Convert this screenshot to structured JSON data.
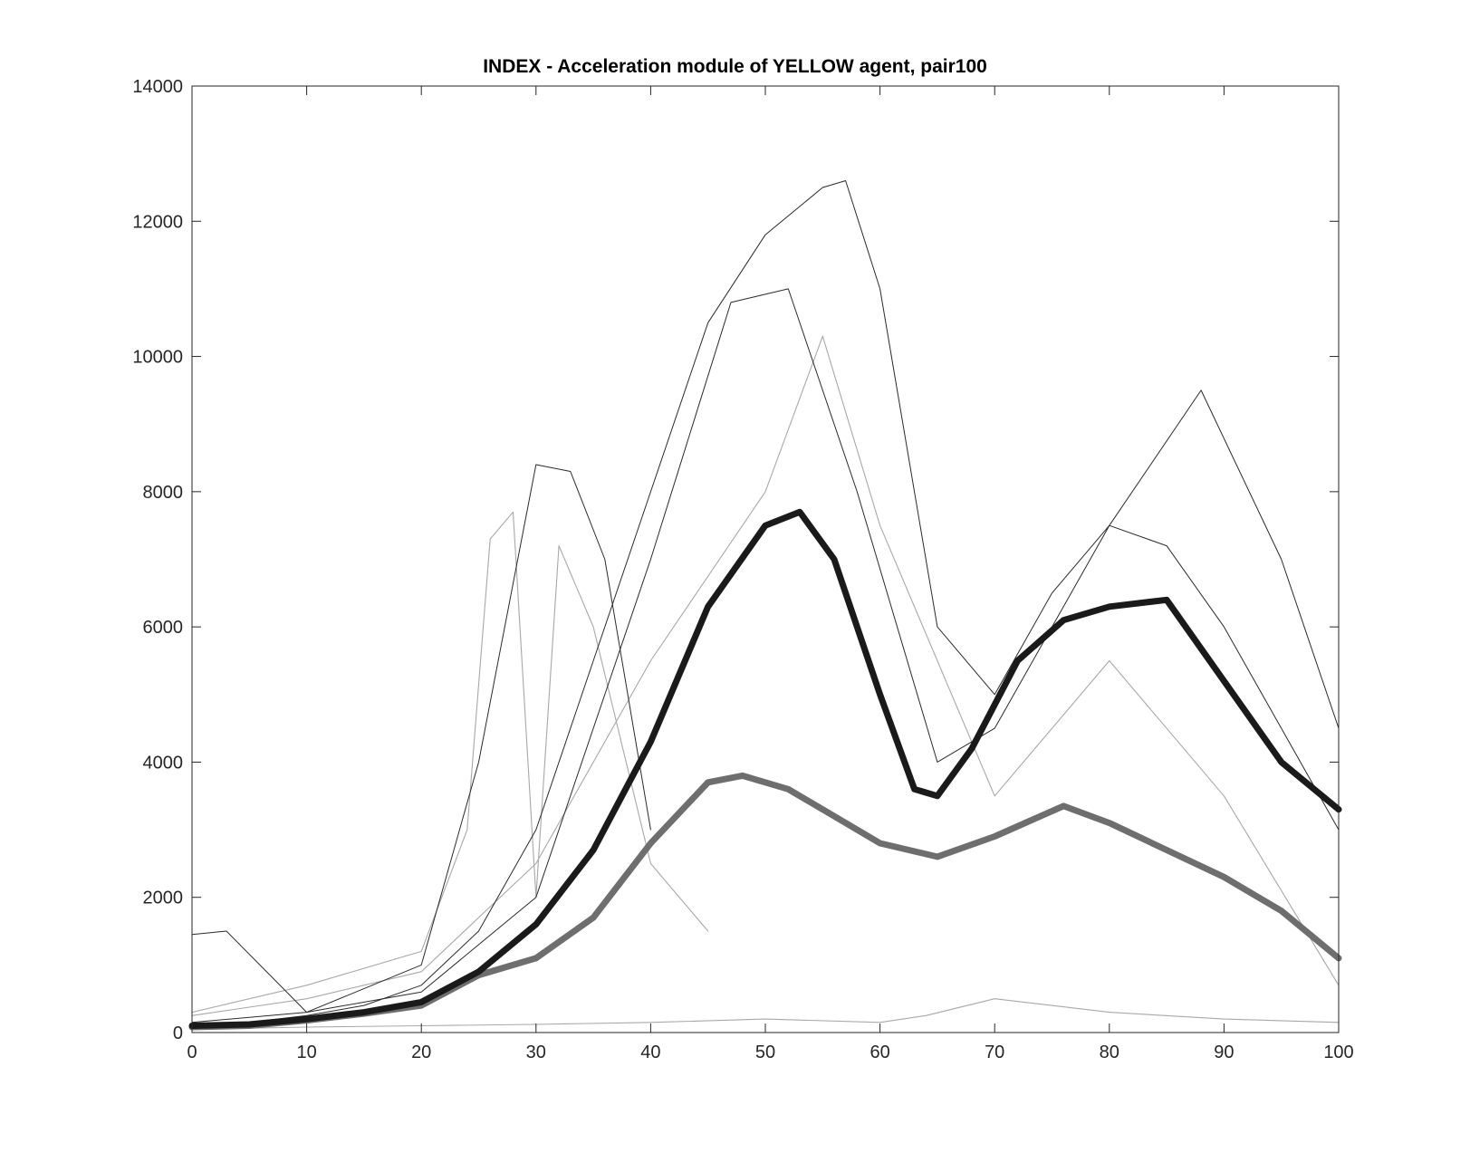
{
  "chart_data": {
    "type": "line",
    "title": "INDEX - Acceleration module of YELLOW agent, pair100",
    "xlabel": "",
    "ylabel": "",
    "xlim": [
      0,
      100
    ],
    "ylim": [
      0,
      14000
    ],
    "xticks": [
      0,
      10,
      20,
      30,
      40,
      50,
      60,
      70,
      80,
      90,
      100
    ],
    "yticks": [
      0,
      2000,
      4000,
      6000,
      8000,
      10000,
      12000,
      14000
    ],
    "grid": false,
    "legend": "none",
    "colors": {
      "mean_dark": "#1a1a1a",
      "mean_gray": "#6e6e6e",
      "trials_dark": "#2a2a2a",
      "trials_gray": "#a8a8a8",
      "axes": "#262626"
    },
    "series": [
      {
        "style": "thick-dark",
        "x": [
          0,
          5,
          10,
          15,
          20,
          25,
          30,
          35,
          40,
          45,
          50,
          53,
          56,
          60,
          63,
          65,
          68,
          72,
          76,
          80,
          85,
          90,
          95,
          100
        ],
        "values": [
          100,
          120,
          200,
          300,
          450,
          900,
          1600,
          2700,
          4300,
          6300,
          7500,
          7700,
          7000,
          5000,
          3600,
          3500,
          4200,
          5500,
          6100,
          6300,
          6400,
          5200,
          4000,
          3300
        ]
      },
      {
        "style": "thick-gray",
        "x": [
          0,
          5,
          10,
          15,
          20,
          25,
          30,
          35,
          40,
          45,
          48,
          52,
          56,
          60,
          65,
          70,
          76,
          80,
          85,
          90,
          95,
          100
        ],
        "values": [
          80,
          100,
          180,
          280,
          400,
          850,
          1100,
          1700,
          2800,
          3700,
          3800,
          3600,
          3200,
          2800,
          2600,
          2900,
          3350,
          3100,
          2700,
          2300,
          1800,
          1100
        ]
      },
      {
        "style": "thin-dark",
        "x": [
          0,
          5,
          10,
          15,
          20,
          25,
          30,
          35,
          40,
          45,
          50,
          55,
          57,
          60,
          65,
          70,
          75,
          80,
          85,
          90,
          95,
          100
        ],
        "values": [
          100,
          150,
          250,
          400,
          700,
          1500,
          3000,
          5500,
          8000,
          10500,
          11800,
          12500,
          12600,
          11000,
          6000,
          5000,
          6500,
          7500,
          7200,
          6000,
          4500,
          3000
        ]
      },
      {
        "style": "thin-dark",
        "x": [
          0,
          3,
          10,
          20,
          25,
          30,
          33,
          36,
          40
        ],
        "values": [
          1450,
          1500,
          300,
          1000,
          4000,
          8400,
          8300,
          7000,
          3000
        ]
      },
      {
        "style": "thin-dark",
        "x": [
          0,
          10,
          20,
          30,
          40,
          47,
          52,
          58,
          65,
          70,
          80,
          88,
          95,
          100
        ],
        "values": [
          150,
          300,
          600,
          2000,
          7000,
          10800,
          11000,
          8000,
          4000,
          4500,
          7500,
          9500,
          7000,
          4500
        ]
      },
      {
        "style": "thin-gray",
        "x": [
          0,
          10,
          20,
          24,
          26,
          28,
          30,
          32,
          35,
          40,
          45
        ],
        "values": [
          300,
          700,
          1200,
          3000,
          7300,
          7700,
          2000,
          7200,
          6000,
          2500,
          1500
        ]
      },
      {
        "style": "thin-gray",
        "x": [
          0,
          10,
          20,
          30,
          40,
          50,
          55,
          60,
          70,
          80,
          90,
          100
        ],
        "values": [
          250,
          500,
          900,
          2500,
          5500,
          8000,
          10300,
          7500,
          3500,
          5500,
          3500,
          700
        ]
      },
      {
        "style": "thin-gray",
        "x": [
          0,
          10,
          20,
          30,
          40,
          50,
          60,
          64,
          70,
          80,
          90,
          100
        ],
        "values": [
          50,
          80,
          100,
          120,
          150,
          200,
          150,
          250,
          500,
          300,
          200,
          150
        ]
      }
    ]
  }
}
